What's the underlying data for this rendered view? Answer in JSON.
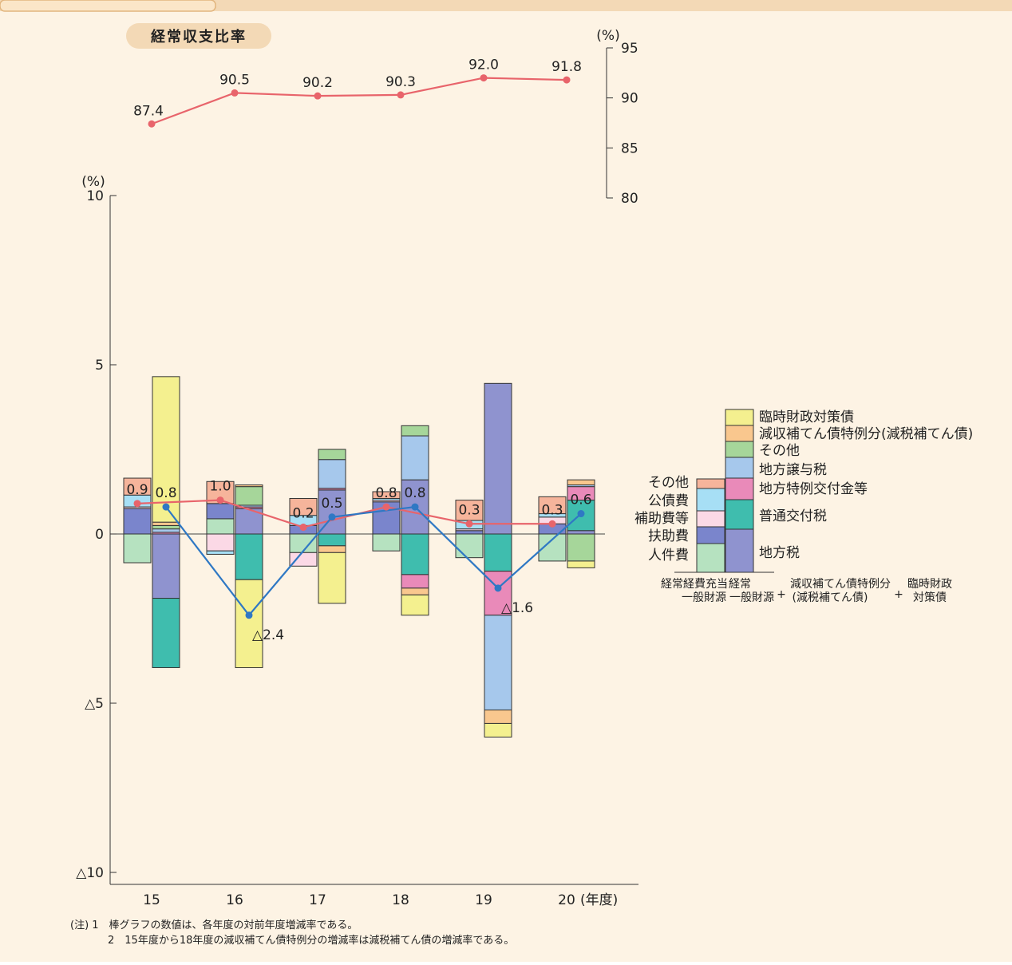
{
  "panel_title": "経常収支比率",
  "chart_data": [
    {
      "type": "line",
      "title": "経常収支比率",
      "x": [
        "15",
        "16",
        "17",
        "18",
        "19",
        "20"
      ],
      "values": [
        87.4,
        90.5,
        90.2,
        90.3,
        92.0,
        91.8
      ],
      "value_labels": [
        "87.4",
        "90.5",
        "90.2",
        "90.3",
        "92.0",
        "91.8"
      ],
      "y_unit": "(%)",
      "ylim": [
        80,
        95
      ],
      "yticks": [
        "80",
        "85",
        "90",
        "95"
      ],
      "axis_side": "right",
      "color": "#e8646b"
    },
    {
      "type": "bar",
      "stacked": true,
      "x_unit": "(年度)",
      "y_unit": "(%)",
      "ylim": [
        -10,
        10
      ],
      "yticks": [
        {
          "v": 10,
          "t": "10"
        },
        {
          "v": 5,
          "t": "5"
        },
        {
          "v": 0,
          "t": "0"
        },
        {
          "v": -5,
          "t": "△5"
        },
        {
          "v": -10,
          "t": "△10"
        }
      ],
      "categories": [
        "15",
        "16",
        "17",
        "18",
        "19",
        "20"
      ],
      "expenditure_bars": [
        {
          "人件費": -0.85,
          "扶助費": 0.75,
          "補助費等": 0.05,
          "公債費": 0.35,
          "その他": 0.5
        },
        {
          "人件費": 0.45,
          "扶助費": 0.45,
          "補助費等": -0.5,
          "公債費": -0.1,
          "その他": 0.65
        },
        {
          "人件費": -0.55,
          "扶助費": 0.25,
          "補助費等": -0.4,
          "公債費": 0.3,
          "その他": 0.5
        },
        {
          "人件費": -0.5,
          "扶助費": 0.95,
          "補助費等": 0.05,
          "公債費": 0.05,
          "その他": 0.2
        },
        {
          "人件費": -0.7,
          "扶助費": 0.1,
          "補助費等": 0.05,
          "公債費": 0.25,
          "その他": 0.6
        },
        {
          "人件費": -0.8,
          "扶助費": 0.3,
          "補助費等": 0.2,
          "公債費": 0.1,
          "その他": 0.5
        }
      ],
      "revenue_bars": [
        {
          "地方税": -1.9,
          "普通交付税": -2.05,
          "地方特例交付金等": 0.05,
          "地方譲与税": 0.1,
          "その他": 0.1,
          "減収補てん債特例分": 0.1,
          "臨時財政対策債": 4.3
        },
        {
          "地方税": 0.75,
          "普通交付税": -1.35,
          "地方特例交付金等": 0.05,
          "地方譲与税": 0.05,
          "その他": 0.55,
          "減収補てん債特例分": 0.05,
          "臨時財政対策債": -2.6
        },
        {
          "地方税": 1.3,
          "普通交付税": -0.35,
          "地方特例交付金等": 0.05,
          "地方譲与税": 0.85,
          "その他": 0.3,
          "減収補てん債特例分": -0.2,
          "臨時財政対策債": -1.5
        },
        {
          "地方税": 1.6,
          "普通交付税": -1.2,
          "地方特例交付金等": -0.4,
          "地方譲与税": 1.3,
          "その他": 0.3,
          "減収補てん債特例分": -0.2,
          "臨時財政対策債": -0.6
        },
        {
          "地方税": 4.45,
          "普通交付税": -1.1,
          "地方特例交付金等": -1.3,
          "地方譲与税": -2.8,
          "その他": 0.0,
          "減収補てん債特例分": -0.4,
          "臨時財政対策債": -0.4
        },
        {
          "地方税": 0.1,
          "普通交付税": 0.9,
          "地方特例交付金等": 0.4,
          "地方譲与税": 0.05,
          "その他": -0.8,
          "減収補てん債特例分": 0.15,
          "臨時財政対策債": -0.2
        }
      ],
      "series": [
        {
          "name": "経常経費充当一般財源",
          "color": "#e8646b",
          "values": [
            0.9,
            1.0,
            0.2,
            0.8,
            0.3,
            0.3
          ],
          "labels": [
            "0.9",
            "1.0",
            "0.2",
            "0.8",
            "0.3",
            "0.3"
          ]
        },
        {
          "name": "経常一般財源+減収補てん債特例分(減税補てん債)+臨時財政対策債",
          "color": "#2f78c4",
          "values": [
            0.8,
            -2.4,
            0.5,
            0.8,
            -1.6,
            0.6
          ],
          "labels": [
            "0.8",
            "△2.4",
            "0.5",
            "0.8",
            "△1.6",
            "0.6"
          ]
        }
      ]
    }
  ],
  "legend": {
    "expenditure_items": [
      "その他",
      "公債費",
      "補助費等",
      "扶助費",
      "人件費"
    ],
    "revenue_items": [
      "臨時財政対策債",
      "減収補てん債特例分(減税補てん債)",
      "その他",
      "地方譲与税",
      "地方特例交付金等",
      "普通交付税",
      "地方税"
    ],
    "caption_left": [
      "経常経費充当",
      "一般財源"
    ],
    "caption_mid": [
      "経常",
      "一般財源"
    ],
    "caption_plus1": "+",
    "caption_right1": [
      "減収補てん債特例分",
      "(減税補てん債)"
    ],
    "caption_plus2": "+",
    "caption_right2": [
      "臨時財政",
      "対策債"
    ]
  },
  "colors": {
    "人件費": "#b6e2c0",
    "扶助費": "#7a85cc",
    "補助費等": "#fbd9e6",
    "公債費": "#a7dff5",
    "exp_その他": "#f6b49b",
    "地方税": "#8f93cf",
    "普通交付税": "#3fbdae",
    "地方特例交付金等": "#e98ab9",
    "地方譲与税": "#a6c8ec",
    "rev_その他": "#a6d69a",
    "減収補てん債特例分": "#f9c78e",
    "臨時財政対策債": "#f4f08f",
    "background": "#fdf3e4",
    "title_badge": "#f3d9b6"
  },
  "notes": [
    "(注) 1　棒グラフの数値は、各年度の対前年度増減率である。",
    "2　15年度から18年度の減収補てん債特例分の増減率は減税補てん債の増減率である。"
  ]
}
